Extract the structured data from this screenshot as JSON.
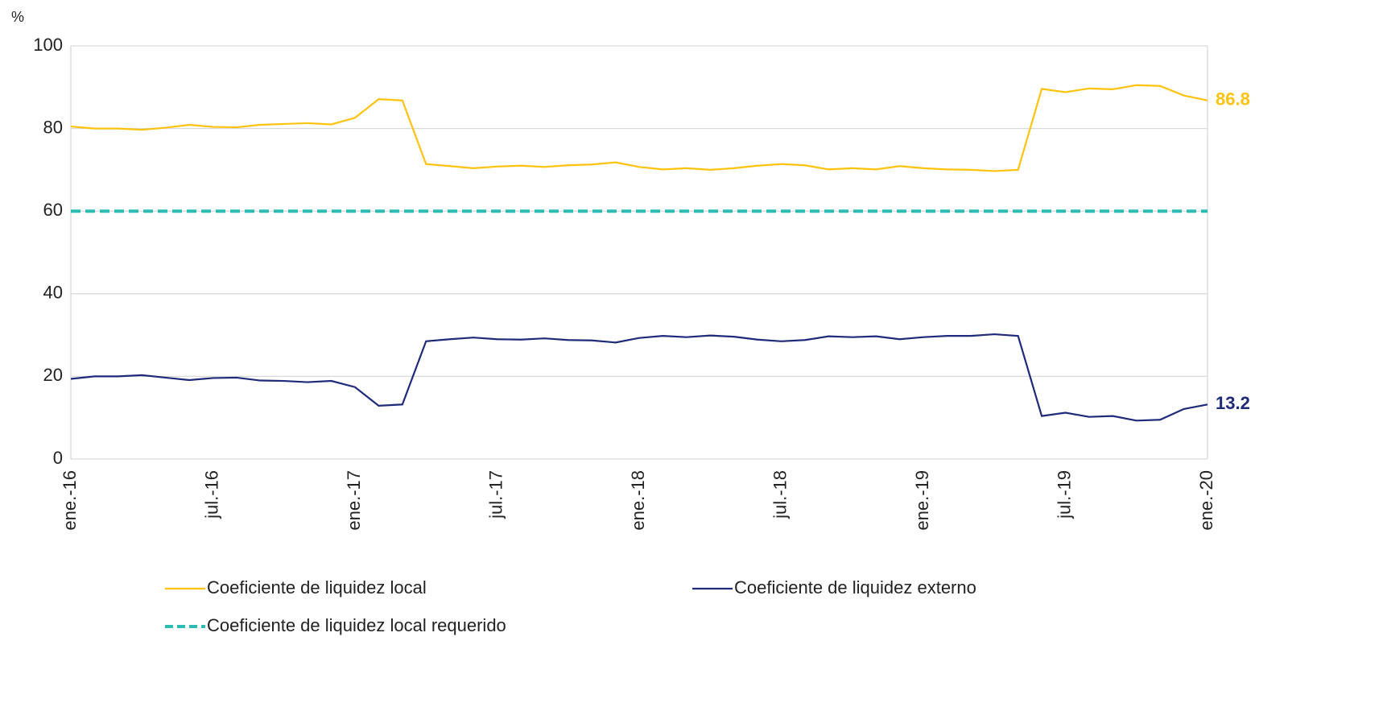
{
  "chart_data": {
    "type": "line",
    "y_unit": "%",
    "categories": [
      "ene.-16",
      null,
      null,
      null,
      null,
      null,
      "jul.-16",
      null,
      null,
      null,
      null,
      null,
      "ene.-17",
      null,
      null,
      null,
      null,
      null,
      "jul.-17",
      null,
      null,
      null,
      null,
      null,
      "ene.-18",
      null,
      null,
      null,
      null,
      null,
      "jul.-18",
      null,
      null,
      null,
      null,
      null,
      "ene.-19",
      null,
      null,
      null,
      null,
      null,
      "jul.-19",
      null,
      null,
      null,
      null,
      null,
      "ene.-20"
    ],
    "series": [
      {
        "name": "Coeficiente de liquidez local",
        "color": "#ffc20e",
        "dash": false,
        "end_label": true,
        "values": [
          80.5,
          80.0,
          80.0,
          79.7,
          80.2,
          80.9,
          80.4,
          80.3,
          80.9,
          81.1,
          81.3,
          81.0,
          82.6,
          87.1,
          86.8,
          71.4,
          70.9,
          70.4,
          70.8,
          71.0,
          70.7,
          71.1,
          71.3,
          71.8,
          70.7,
          70.1,
          70.4,
          70.0,
          70.4,
          71.0,
          71.4,
          71.1,
          70.1,
          70.4,
          70.1,
          70.9,
          70.4,
          70.1,
          70.0,
          69.7,
          70.0,
          89.6,
          88.8,
          89.7,
          89.5,
          90.5,
          90.3,
          88.0,
          86.8
        ]
      },
      {
        "name": "Coeficiente de liquidez externo",
        "color": "#1f2a7a",
        "dash": false,
        "end_label": true,
        "values": [
          19.4,
          20.0,
          20.0,
          20.3,
          19.7,
          19.1,
          19.6,
          19.7,
          19.0,
          18.9,
          18.6,
          18.9,
          17.4,
          12.9,
          13.2,
          28.5,
          29.0,
          29.4,
          29.0,
          28.9,
          29.2,
          28.8,
          28.7,
          28.2,
          29.3,
          29.8,
          29.5,
          29.9,
          29.6,
          28.9,
          28.5,
          28.8,
          29.7,
          29.5,
          29.7,
          29.0,
          29.5,
          29.8,
          29.8,
          30.2,
          29.8,
          10.4,
          11.2,
          10.2,
          10.4,
          9.3,
          9.5,
          12.1,
          13.2
        ]
      },
      {
        "name": "Coeficiente de liquidez local requerido",
        "color": "#2bbcb4",
        "dash": true,
        "end_label": false,
        "values": [
          60,
          60,
          60,
          60,
          60,
          60,
          60,
          60,
          60,
          60,
          60,
          60,
          60,
          60,
          60,
          60,
          60,
          60,
          60,
          60,
          60,
          60,
          60,
          60,
          60,
          60,
          60,
          60,
          60,
          60,
          60,
          60,
          60,
          60,
          60,
          60,
          60,
          60,
          60,
          60,
          60,
          60,
          60,
          60,
          60,
          60,
          60,
          60,
          60
        ]
      }
    ],
    "ylim": [
      0,
      100
    ],
    "yticks": [
      0,
      20,
      40,
      60,
      80,
      100
    ],
    "grid": true
  }
}
